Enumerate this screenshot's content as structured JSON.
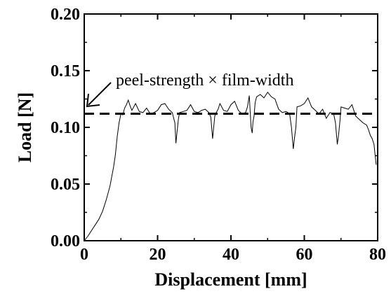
{
  "chart_data": {
    "type": "line",
    "title": "",
    "xlabel": "Displacement [mm]",
    "ylabel": "Load [N]",
    "xlim": [
      0,
      80
    ],
    "ylim": [
      0,
      0.2
    ],
    "xticks": [
      0,
      20,
      40,
      60,
      80
    ],
    "yticks": [
      0.0,
      0.05,
      0.1,
      0.15,
      0.2
    ],
    "xtick_labels": [
      "0",
      "20",
      "40",
      "60",
      "80"
    ],
    "ytick_labels": [
      "0.00",
      "0.05",
      "0.10",
      "0.15",
      "0.20"
    ],
    "grid": false,
    "reference_line": {
      "y": 0.112,
      "style": "dashed"
    },
    "annotation": {
      "text": "peel-strength × film-width",
      "points_to": {
        "x": 0,
        "y": 0.112
      }
    },
    "series": [
      {
        "x": [
          0,
          1,
          2,
          3,
          4,
          5,
          6,
          7,
          8,
          8.5,
          9,
          9.5,
          10,
          10.5,
          11,
          11.5,
          12,
          12.5,
          13,
          13.5,
          14,
          15,
          16,
          17,
          18,
          19,
          20,
          21,
          22,
          23,
          24,
          24.7,
          25,
          25.3,
          25.7,
          26,
          27,
          28,
          29,
          30,
          31,
          32,
          33,
          34,
          34.5,
          35,
          35.3,
          35.6,
          36,
          36.5,
          37,
          38,
          39,
          40,
          41,
          42,
          43,
          44,
          44.5,
          45,
          45.5,
          45.8,
          46,
          46.3,
          46.6,
          47,
          48,
          49,
          50,
          51,
          52,
          53,
          54,
          55,
          56,
          56.5,
          57,
          57.3,
          57.7,
          58,
          59,
          60,
          61,
          62,
          63,
          64,
          65,
          66,
          67,
          68,
          68.5,
          69,
          69.3,
          69.7,
          70,
          71,
          72,
          73,
          74,
          75,
          76,
          77,
          77.5,
          78,
          78.5,
          79,
          79.3,
          79.6
        ],
        "values": [
          0.0,
          0.004,
          0.009,
          0.014,
          0.019,
          0.026,
          0.036,
          0.048,
          0.065,
          0.076,
          0.092,
          0.104,
          0.112,
          0.111,
          0.117,
          0.12,
          0.124,
          0.119,
          0.115,
          0.118,
          0.121,
          0.114,
          0.113,
          0.117,
          0.112,
          0.113,
          0.115,
          0.12,
          0.121,
          0.116,
          0.113,
          0.104,
          0.086,
          0.096,
          0.108,
          0.113,
          0.114,
          0.115,
          0.12,
          0.114,
          0.113,
          0.115,
          0.116,
          0.113,
          0.109,
          0.09,
          0.1,
          0.11,
          0.113,
          0.116,
          0.121,
          0.115,
          0.114,
          0.12,
          0.123,
          0.115,
          0.112,
          0.113,
          0.118,
          0.128,
          0.1,
          0.095,
          0.105,
          0.11,
          0.122,
          0.127,
          0.129,
          0.126,
          0.131,
          0.127,
          0.125,
          0.116,
          0.113,
          0.114,
          0.112,
          0.1,
          0.081,
          0.09,
          0.1,
          0.118,
          0.119,
          0.121,
          0.126,
          0.118,
          0.115,
          0.112,
          0.116,
          0.108,
          0.113,
          0.112,
          0.104,
          0.085,
          0.092,
          0.105,
          0.118,
          0.117,
          0.116,
          0.12,
          0.11,
          0.107,
          0.104,
          0.102,
          0.098,
          0.093,
          0.09,
          0.085,
          0.076,
          0.067
        ]
      }
    ]
  }
}
